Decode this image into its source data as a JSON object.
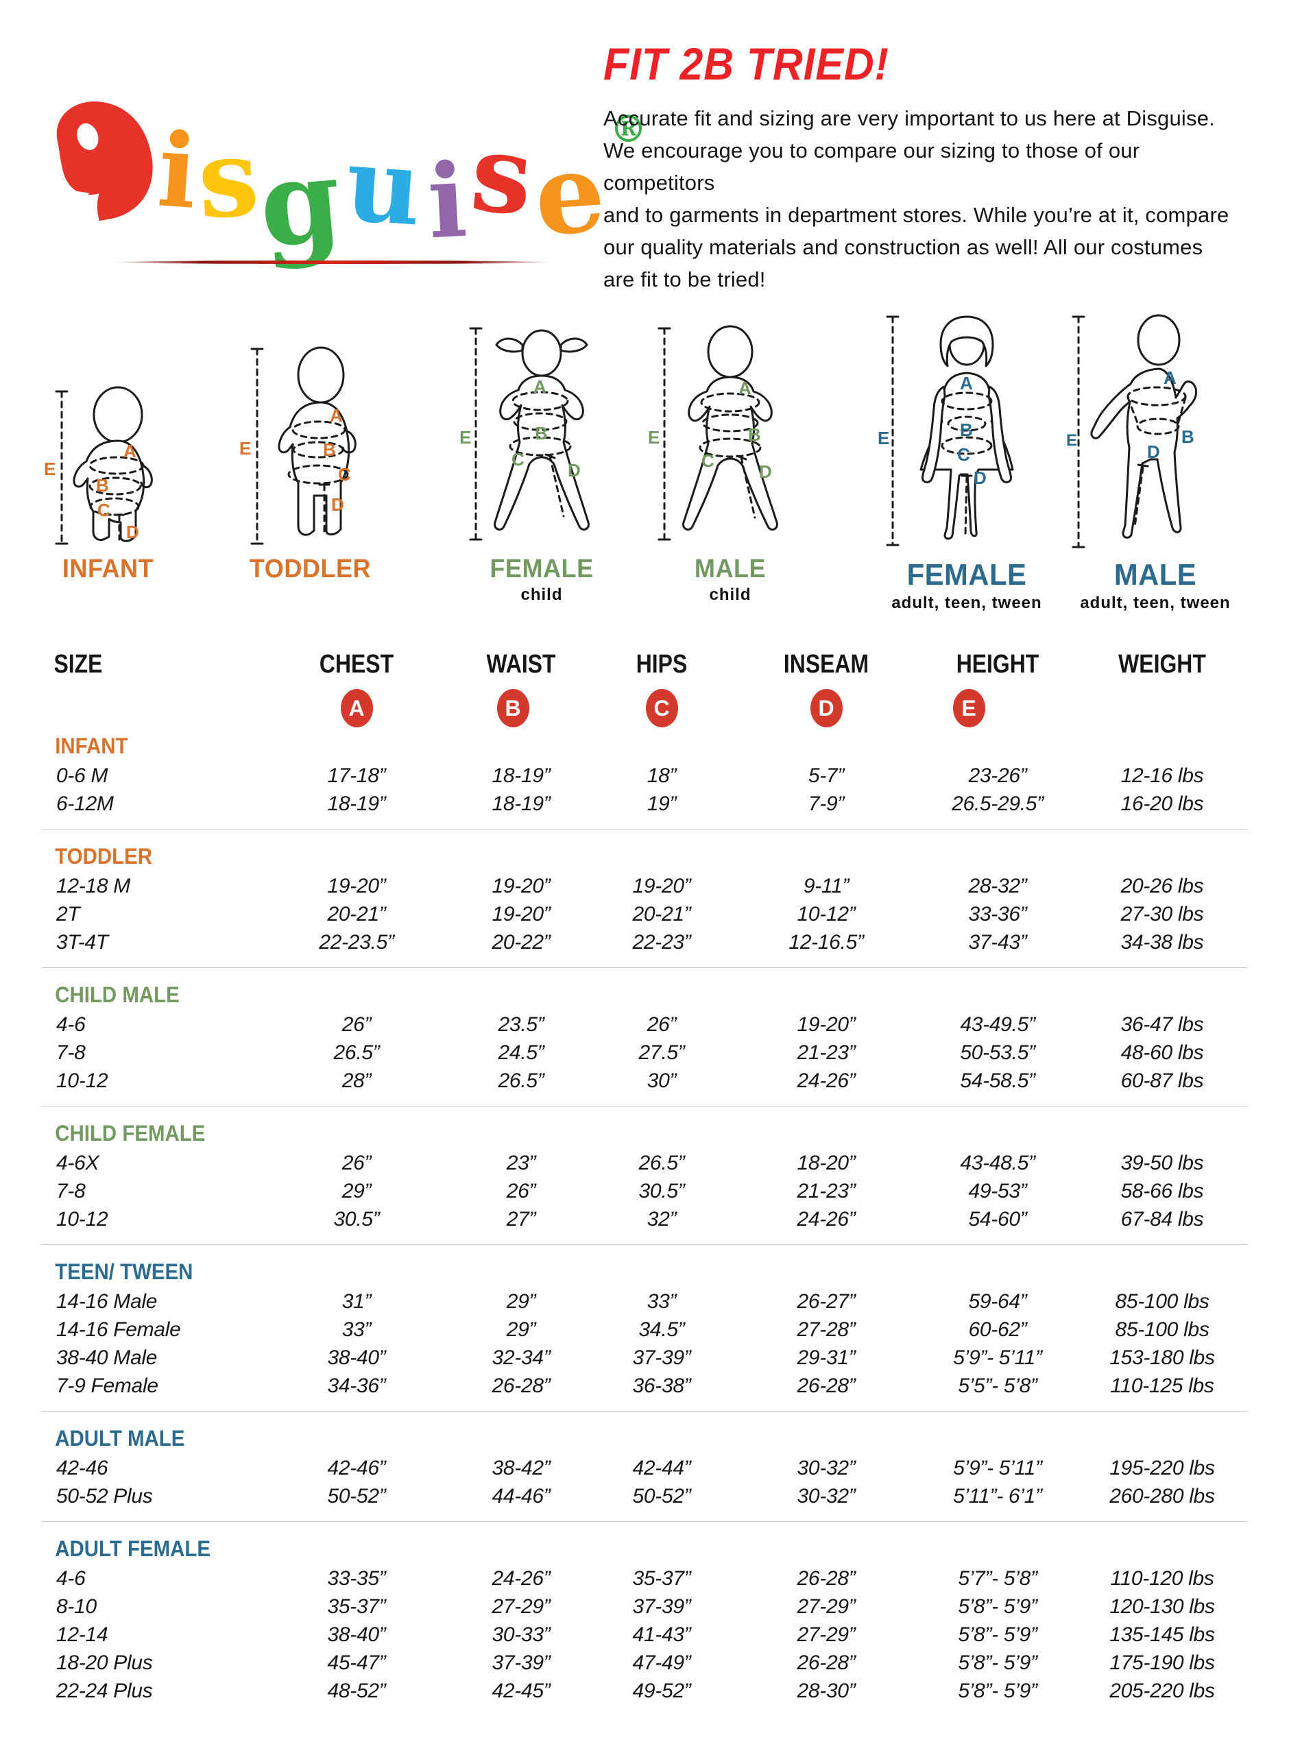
{
  "colors": {
    "title_red": "#EC2227",
    "badge_red": "#D4392E",
    "orange": "#D9732B",
    "green": "#72995F",
    "teal": "#2B6B8F",
    "separator": "#C9C9C9"
  },
  "logo": {
    "letters": [
      {
        "ch": "D",
        "color": "#E73229"
      },
      {
        "ch": "i",
        "color": "#F7941E"
      },
      {
        "ch": "s",
        "color": "#FFC60B"
      },
      {
        "ch": "g",
        "color": "#3BAE49"
      },
      {
        "ch": "u",
        "color": "#2BACE2"
      },
      {
        "ch": "i",
        "color": "#9166AB"
      },
      {
        "ch": "s",
        "color": "#E73229"
      },
      {
        "ch": "e",
        "color": "#F7941E"
      }
    ],
    "registered": "®",
    "reg_color": "#3BAE49"
  },
  "intro": {
    "title": "FIT 2B TRIED!",
    "body": "Accurate fit and sizing are very important to us here at Disguise.\nWe encourage you to compare our sizing to those of our competitors\nand to garments in department stores. While you’re at it, compare\nour quality materials and construction as well! All our costumes\nare fit to be tried!"
  },
  "letters": [
    "A",
    "B",
    "C",
    "D",
    "E"
  ],
  "figures": [
    {
      "label": "INFANT",
      "sublabel": "",
      "color": "#D9732B"
    },
    {
      "label": "TODDLER",
      "sublabel": "",
      "color": "#D9732B"
    },
    {
      "label": "FEMALE",
      "sublabel": "child",
      "color": "#72995F"
    },
    {
      "label": "MALE",
      "sublabel": "child",
      "color": "#72995F"
    },
    {
      "label": "FEMALE",
      "sublabel": "adult, teen, tween",
      "color": "#2B6B8F"
    },
    {
      "label": "MALE",
      "sublabel": "adult, teen, tween",
      "color": "#2B6B8F"
    }
  ],
  "table": {
    "columns": [
      "SIZE",
      "CHEST",
      "WAIST",
      "HIPS",
      "INSEAM",
      "HEIGHT",
      "WEIGHT"
    ],
    "badges": [
      "A",
      "B",
      "C",
      "D",
      "E"
    ],
    "badge_color": "#D4392E",
    "sections": [
      {
        "name": "INFANT",
        "color": "#D9732B",
        "rows": [
          [
            "0-6 M",
            "17-18”",
            "18-19”",
            "18”",
            "5-7”",
            "23-26”",
            "12-16 lbs"
          ],
          [
            "6-12M",
            "18-19”",
            "18-19”",
            "19”",
            "7-9”",
            "26.5-29.5”",
            "16-20 lbs"
          ]
        ]
      },
      {
        "name": "TODDLER",
        "color": "#D9732B",
        "rows": [
          [
            "12-18 M",
            "19-20”",
            "19-20”",
            "19-20”",
            "9-11”",
            "28-32”",
            "20-26 lbs"
          ],
          [
            "2T",
            "20-21”",
            "19-20”",
            "20-21”",
            "10-12”",
            "33-36”",
            "27-30 lbs"
          ],
          [
            "3T-4T",
            "22-23.5”",
            "20-22”",
            "22-23”",
            "12-16.5”",
            "37-43”",
            "34-38 lbs"
          ]
        ]
      },
      {
        "name": "CHILD MALE",
        "color": "#72995F",
        "rows": [
          [
            "4-6",
            "26”",
            "23.5”",
            "26”",
            "19-20”",
            "43-49.5”",
            "36-47 lbs"
          ],
          [
            "7-8",
            "26.5”",
            "24.5”",
            "27.5”",
            "21-23”",
            "50-53.5”",
            "48-60 lbs"
          ],
          [
            "10-12",
            "28”",
            "26.5”",
            "30”",
            "24-26”",
            "54-58.5”",
            "60-87 lbs"
          ]
        ]
      },
      {
        "name": "CHILD FEMALE",
        "color": "#72995F",
        "rows": [
          [
            "4-6X",
            "26”",
            "23”",
            "26.5”",
            "18-20”",
            "43-48.5”",
            "39-50 lbs"
          ],
          [
            "7-8",
            "29”",
            "26”",
            "30.5”",
            "21-23”",
            "49-53”",
            "58-66 lbs"
          ],
          [
            "10-12",
            "30.5”",
            "27”",
            "32”",
            "24-26”",
            "54-60”",
            "67-84 lbs"
          ]
        ]
      },
      {
        "name": "TEEN/ TWEEN",
        "color": "#2B6B8F",
        "rows": [
          [
            "14-16 Male",
            "31”",
            "29”",
            "33”",
            "26-27”",
            "59-64”",
            "85-100 lbs"
          ],
          [
            "14-16 Female",
            "33”",
            "29”",
            "34.5”",
            "27-28”",
            "60-62”",
            "85-100 lbs"
          ],
          [
            "38-40 Male",
            "38-40”",
            "32-34”",
            "37-39”",
            "29-31”",
            "5’9”- 5’11”",
            "153-180 lbs"
          ],
          [
            "7-9 Female",
            "34-36”",
            "26-28”",
            "36-38”",
            "26-28”",
            "5’5”- 5’8”",
            "110-125 lbs"
          ]
        ]
      },
      {
        "name": "ADULT MALE",
        "color": "#2B6B8F",
        "rows": [
          [
            "42-46",
            "42-46”",
            "38-42”",
            "42-44”",
            "30-32”",
            "5’9”- 5’11”",
            "195-220 lbs"
          ],
          [
            "50-52 Plus",
            "50-52”",
            "44-46”",
            "50-52”",
            "30-32”",
            "5’11”- 6’1”",
            "260-280 lbs"
          ]
        ]
      },
      {
        "name": "ADULT FEMALE",
        "color": "#2B6B8F",
        "rows": [
          [
            "4-6",
            "33-35”",
            "24-26”",
            "35-37”",
            "26-28”",
            "5’7”- 5’8”",
            "110-120 lbs"
          ],
          [
            "8-10",
            "35-37”",
            "27-29”",
            "37-39”",
            "27-29”",
            "5’8”- 5’9”",
            "120-130 lbs"
          ],
          [
            "12-14",
            "38-40”",
            "30-33”",
            "41-43”",
            "27-29”",
            "5’8”- 5’9”",
            "135-145 lbs"
          ],
          [
            "18-20 Plus",
            "45-47”",
            "37-39”",
            "47-49”",
            "26-28”",
            "5’8”- 5’9”",
            "175-190 lbs"
          ],
          [
            "22-24 Plus",
            "48-52”",
            "42-45”",
            "49-52”",
            "28-30”",
            "5’8”- 5’9”",
            "205-220 lbs"
          ]
        ]
      }
    ]
  }
}
